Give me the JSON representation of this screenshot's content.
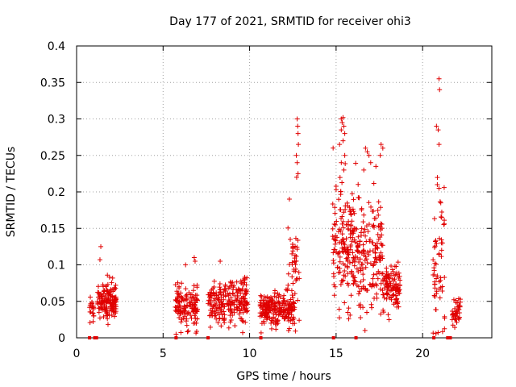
{
  "chart_data": {
    "type": "scatter",
    "title": "Day 177 of 2021, SRMTID for receiver ohi3",
    "xlabel": "GPS time / hours",
    "ylabel": "SRMTID / TECUs",
    "xlim": [
      0,
      24
    ],
    "ylim": [
      0,
      0.4
    ],
    "x_ticks": [
      0,
      5,
      10,
      15,
      20
    ],
    "y_ticks": [
      0,
      0.05,
      0.1,
      0.15,
      0.2,
      0.25,
      0.3,
      0.35,
      0.4
    ],
    "x_tick_labels": [
      "0",
      "5",
      "10",
      "15",
      "20"
    ],
    "y_tick_labels": [
      "0",
      "0.05",
      "0.1",
      "0.15",
      "0.2",
      "0.25",
      "0.3",
      "0.35",
      "0.4"
    ],
    "grid": true,
    "marker_color": "#e00000",
    "clusters": [
      {
        "x_range": [
          0.75,
          1.0
        ],
        "center": 0.04,
        "spread": 0.01,
        "count": 20
      },
      {
        "x_range": [
          1.2,
          2.3
        ],
        "center": 0.05,
        "spread": 0.012,
        "count": 150
      },
      {
        "x_range": [
          5.7,
          7.0
        ],
        "center": 0.045,
        "spread": 0.013,
        "count": 140
      },
      {
        "x_range": [
          7.6,
          9.9
        ],
        "center": 0.05,
        "spread": 0.015,
        "count": 230
      },
      {
        "x_range": [
          10.6,
          12.6
        ],
        "center": 0.04,
        "spread": 0.01,
        "count": 220
      },
      {
        "x_range": [
          12.2,
          12.9
        ],
        "center": 0.09,
        "spread": 0.04,
        "count": 45
      },
      {
        "x_range": [
          14.8,
          16.0
        ],
        "center": 0.13,
        "spread": 0.04,
        "count": 150
      },
      {
        "x_range": [
          16.0,
          17.7
        ],
        "center": 0.12,
        "spread": 0.035,
        "count": 180
      },
      {
        "x_range": [
          17.7,
          18.7
        ],
        "center": 0.07,
        "spread": 0.015,
        "count": 110
      },
      {
        "x_range": [
          20.6,
          21.3
        ],
        "center": 0.08,
        "spread": 0.05,
        "count": 55
      },
      {
        "x_range": [
          21.7,
          22.2
        ],
        "center": 0.035,
        "spread": 0.01,
        "count": 40
      }
    ],
    "points": [
      [
        12.3,
        0.19
      ],
      [
        12.35,
        0.135
      ],
      [
        12.45,
        0.115
      ],
      [
        12.75,
        0.3
      ],
      [
        12.78,
        0.29
      ],
      [
        12.8,
        0.28
      ],
      [
        12.82,
        0.265
      ],
      [
        12.7,
        0.25
      ],
      [
        12.75,
        0.24
      ],
      [
        12.8,
        0.225
      ],
      [
        12.72,
        0.22
      ],
      [
        15.3,
        0.3
      ],
      [
        15.4,
        0.302
      ],
      [
        15.35,
        0.295
      ],
      [
        15.45,
        0.29
      ],
      [
        15.5,
        0.28
      ],
      [
        15.3,
        0.285
      ],
      [
        15.4,
        0.27
      ],
      [
        15.2,
        0.265
      ],
      [
        15.5,
        0.25
      ],
      [
        15.3,
        0.24
      ],
      [
        15.45,
        0.23
      ],
      [
        17.6,
        0.265
      ],
      [
        17.7,
        0.26
      ],
      [
        17.55,
        0.25
      ],
      [
        16.7,
        0.26
      ],
      [
        16.8,
        0.255
      ],
      [
        16.9,
        0.25
      ],
      [
        17.0,
        0.24
      ],
      [
        17.3,
        0.235
      ],
      [
        16.6,
        0.23
      ],
      [
        20.95,
        0.355
      ],
      [
        20.98,
        0.34
      ],
      [
        20.8,
        0.29
      ],
      [
        20.9,
        0.285
      ],
      [
        20.95,
        0.265
      ],
      [
        20.85,
        0.21
      ],
      [
        20.95,
        0.205
      ],
      [
        21.05,
        0.185
      ],
      [
        21.1,
        0.165
      ],
      [
        21.15,
        0.13
      ],
      [
        21.1,
        0.12
      ],
      [
        6.8,
        0.11
      ],
      [
        6.85,
        0.105
      ],
      [
        6.3,
        0.1
      ],
      [
        5.75,
        0.005
      ],
      [
        9.6,
        0.007
      ],
      [
        8.3,
        0.105
      ],
      [
        1.4,
        0.125
      ],
      [
        1.35,
        0.107
      ]
    ],
    "zero_markers": [
      0.75,
      1.05,
      1.15,
      5.75,
      7.6,
      10.65,
      14.85,
      16.15,
      20.65,
      21.45,
      21.6
    ]
  }
}
